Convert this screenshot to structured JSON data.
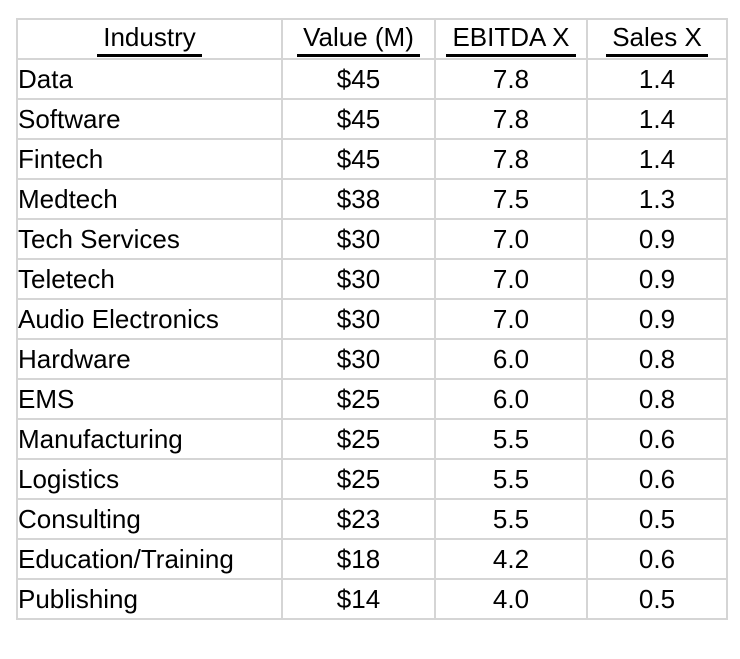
{
  "chart_data": {
    "type": "table",
    "title": "",
    "columns": [
      "Industry",
      "Value (M)",
      "EBITDA X",
      "Sales X"
    ],
    "rows": [
      [
        "Data",
        "$45",
        "7.8",
        "1.4"
      ],
      [
        "Software",
        "$45",
        "7.8",
        "1.4"
      ],
      [
        "Fintech",
        "$45",
        "7.8",
        "1.4"
      ],
      [
        "Medtech",
        "$38",
        "7.5",
        "1.3"
      ],
      [
        "Tech Services",
        "$30",
        "7.0",
        "0.9"
      ],
      [
        "Teletech",
        "$30",
        "7.0",
        "0.9"
      ],
      [
        "Audio Electronics",
        "$30",
        "7.0",
        "0.9"
      ],
      [
        "Hardware",
        "$30",
        "6.0",
        "0.8"
      ],
      [
        "EMS",
        "$25",
        "6.0",
        "0.8"
      ],
      [
        "Manufacturing",
        "$25",
        "5.5",
        "0.6"
      ],
      [
        "Logistics",
        "$25",
        "5.5",
        "0.6"
      ],
      [
        "Consulting",
        "$23",
        "5.5",
        "0.5"
      ],
      [
        "Education/Training",
        "$18",
        "4.2",
        "0.6"
      ],
      [
        "Publishing",
        "$14",
        "4.0",
        "0.5"
      ]
    ],
    "layout": {
      "header_underlined": true,
      "industry_alignment": "left",
      "numeric_alignment": "center"
    },
    "colors": {
      "text": "#000000",
      "gridline": "#d5d5d5",
      "cell_background": "#ffffff"
    }
  }
}
